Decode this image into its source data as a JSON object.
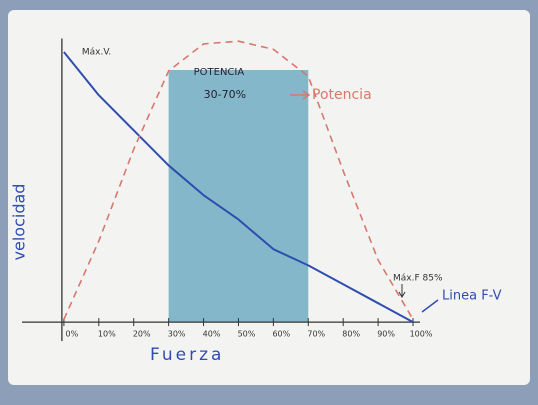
{
  "chart_data": {
    "type": "line",
    "xlabel": "Fuerza",
    "ylabel": "velocidad",
    "x": [
      0,
      10,
      20,
      30,
      40,
      50,
      60,
      70,
      80,
      90,
      100
    ],
    "xlim": [
      -12,
      102
    ],
    "ylim": [
      -7,
      105
    ],
    "xticks": [
      {
        "value": 0,
        "label": "0%"
      },
      {
        "value": 10,
        "label": "10%"
      },
      {
        "value": 20,
        "label": "20%"
      },
      {
        "value": 30,
        "label": "30%"
      },
      {
        "value": 40,
        "label": "40%"
      },
      {
        "value": 50,
        "label": "50%"
      },
      {
        "value": 60,
        "label": "60%"
      },
      {
        "value": 70,
        "label": "70%"
      },
      {
        "value": 80,
        "label": "80%"
      },
      {
        "value": 90,
        "label": "90%"
      },
      {
        "value": 100,
        "label": "100%"
      }
    ],
    "series": [
      {
        "name": "Linea F-V",
        "color": "#2f4db0",
        "dashed": false,
        "values": [
          100,
          84,
          71,
          58,
          47,
          38,
          27,
          21,
          14,
          7,
          0
        ]
      },
      {
        "name": "Potencia",
        "color": "#d8786c",
        "dashed": true,
        "values": [
          1,
          30,
          64,
          93,
          103,
          104,
          101,
          91,
          56,
          23,
          1
        ]
      }
    ],
    "highlight": {
      "x": [
        30,
        70
      ],
      "color": "#5fa3bb",
      "label": [
        "POTENCIA",
        "30-70%"
      ]
    },
    "annotations": [
      "Máx.V.",
      "Máx.F 85%"
    ]
  }
}
